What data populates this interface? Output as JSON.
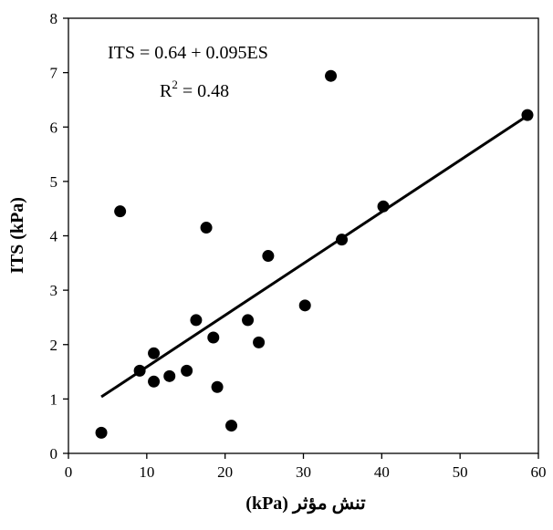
{
  "chart_data": {
    "type": "scatter",
    "title": "",
    "xlabel": "تنش مؤثر (kPa)",
    "ylabel": "ITS (kPa)",
    "xlim": [
      0,
      60
    ],
    "ylim": [
      0,
      8
    ],
    "xticks": [
      "0",
      "10",
      "20",
      "30",
      "40",
      "50",
      "60"
    ],
    "yticks": [
      "0",
      "1",
      "2",
      "3",
      "4",
      "5",
      "6",
      "7",
      "8"
    ],
    "grid": false,
    "legend": "none",
    "marker_color": "#000000",
    "line_color": "#000000",
    "series": [
      {
        "x": [
          4.2,
          6.6,
          9.1,
          10.9,
          10.9,
          12.9,
          15.1,
          16.3,
          17.6,
          18.5,
          19.0,
          20.8,
          22.9,
          24.3,
          25.5,
          30.2,
          33.5,
          34.9,
          40.2,
          58.6
        ],
        "y": [
          0.38,
          4.45,
          1.52,
          1.84,
          1.32,
          1.42,
          1.52,
          2.45,
          4.15,
          2.13,
          1.22,
          0.51,
          2.45,
          2.04,
          3.63,
          2.72,
          6.94,
          3.93,
          4.54,
          6.22
        ]
      }
    ],
    "trendline": {
      "intercept": 0.64,
      "slope": 0.095,
      "x_range": [
        4.2,
        58.6
      ]
    },
    "annotations": {
      "equation": "ITS = 0.64 + 0.095ES",
      "r2_prefix": "R",
      "r2_superscript": "2",
      "r2_suffix": " = 0.48"
    }
  }
}
